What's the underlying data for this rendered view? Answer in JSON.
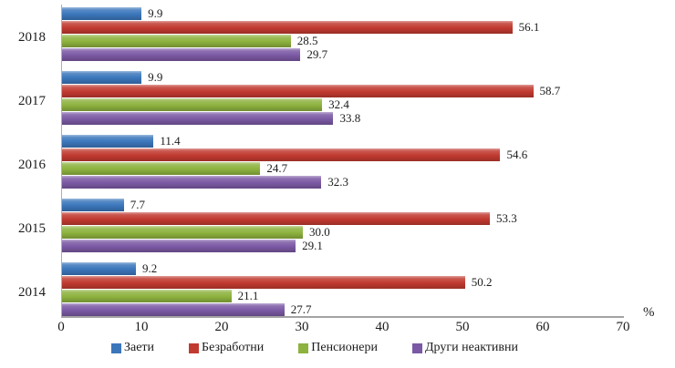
{
  "chart_data": {
    "type": "bar",
    "orientation": "horizontal",
    "categories": [
      "2018",
      "2017",
      "2016",
      "2015",
      "2014"
    ],
    "series": [
      {
        "name": "Заети",
        "color": "#3B76BB",
        "values": [
          9.9,
          9.9,
          11.4,
          7.7,
          9.2
        ],
        "value_labels": [
          "9.9",
          "9.9",
          "11.4",
          "7.7",
          "9.2"
        ]
      },
      {
        "name": "Безработни",
        "color": "#C13A30",
        "values": [
          56.1,
          58.7,
          54.6,
          53.3,
          50.2
        ],
        "value_labels": [
          "56.1",
          "58.7",
          "54.6",
          "53.3",
          "50.2"
        ]
      },
      {
        "name": "Пенсионери",
        "color": "#8DB23E",
        "values": [
          28.5,
          32.4,
          24.7,
          30.0,
          21.1
        ],
        "value_labels": [
          "28.5",
          "32.4",
          "24.7",
          "30.0",
          "21.1"
        ]
      },
      {
        "name": "Други неактивни",
        "color": "#7B59A4",
        "values": [
          29.7,
          33.8,
          32.3,
          29.1,
          27.7
        ],
        "value_labels": [
          "29.7",
          "33.8",
          "32.3",
          "29.1",
          "27.7"
        ]
      }
    ],
    "xlim": [
      0,
      70
    ],
    "x_ticks": [
      "0",
      "10",
      "20",
      "30",
      "40",
      "50",
      "60",
      "70"
    ],
    "xlabel": "%",
    "grid": false,
    "legend_position": "bottom"
  }
}
